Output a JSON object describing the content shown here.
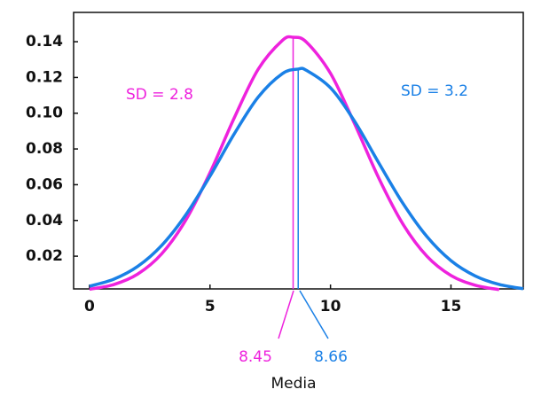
{
  "chart_data": {
    "type": "line",
    "annotations": [
      "SD = 2.8",
      "SD = 3.2"
    ],
    "mean_title": "Media",
    "series": [
      {
        "name": "SD = 2.8",
        "color": "#ee22dd",
        "mean": 8.45,
        "x": [
          0,
          1,
          2,
          3,
          4,
          5,
          6,
          7,
          8,
          8.45,
          9,
          10,
          11,
          12,
          13,
          14,
          15,
          16,
          17
        ],
        "values": [
          0.0015,
          0.0041,
          0.01,
          0.0214,
          0.0403,
          0.0667,
          0.0972,
          0.1246,
          0.1407,
          0.1425,
          0.1398,
          0.1223,
          0.0941,
          0.0638,
          0.0381,
          0.02,
          0.0092,
          0.0038,
          0.0013
        ]
      },
      {
        "name": "SD = 3.2",
        "color": "#1a80e6",
        "mean": 8.66,
        "x": [
          0,
          1,
          2,
          3,
          4,
          5,
          6,
          7,
          8,
          8.66,
          9,
          10,
          11,
          12,
          13,
          14,
          15,
          16,
          17,
          18
        ],
        "values": [
          0.0032,
          0.0071,
          0.0143,
          0.0261,
          0.0432,
          0.0648,
          0.0883,
          0.109,
          0.1221,
          0.1247,
          0.124,
          0.1142,
          0.0955,
          0.0723,
          0.0497,
          0.031,
          0.0175,
          0.009,
          0.0042,
          0.0018
        ]
      }
    ],
    "xlim": [
      -0.66,
      18
    ],
    "xticks": [
      0,
      5,
      10,
      15
    ],
    "ylim": [
      0.0017,
      0.1564
    ],
    "yticks": [
      0.02,
      0.04,
      0.06,
      0.08,
      {
        "value": 0.1,
        "label": "0.10"
      },
      0.12,
      0.14
    ],
    "grid": false
  }
}
